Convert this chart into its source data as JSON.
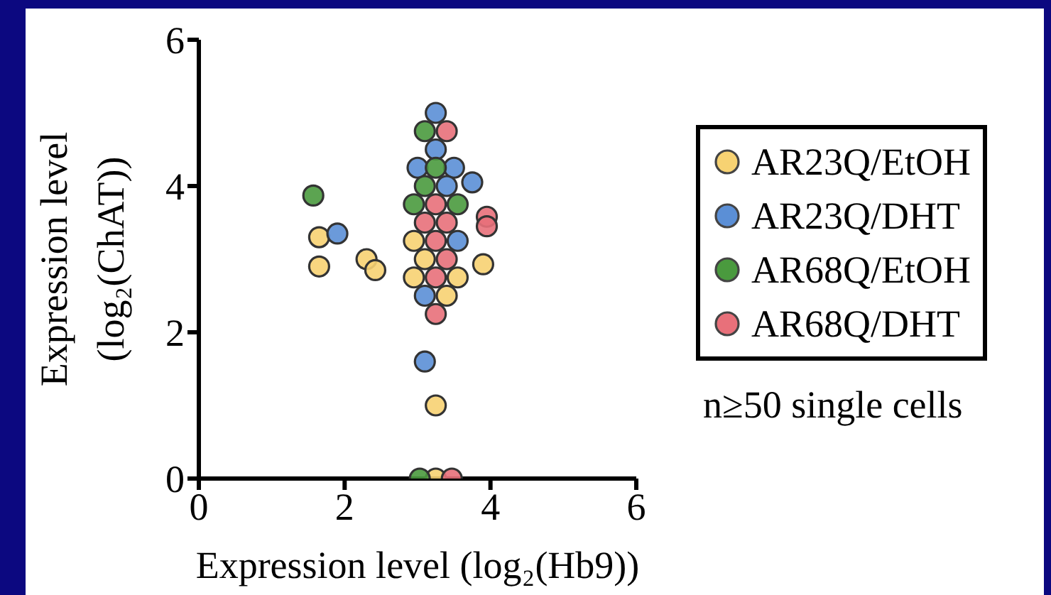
{
  "chart_data": {
    "type": "scatter",
    "xlabel": "Expression level (log₂(Hb9))",
    "ylabel": "Expression level\n(log₂(ChAT))",
    "xlim": [
      0,
      6
    ],
    "ylim": [
      0,
      6
    ],
    "xticks": [
      0,
      2,
      4,
      6
    ],
    "yticks": [
      0,
      2,
      4,
      6
    ],
    "grid": false,
    "legend": "right",
    "marker": "circle",
    "annotations": [
      "n≥50 single cells"
    ],
    "series": [
      {
        "name": "AR23Q/EtOH",
        "color": "#f7d272",
        "x": [
          1.65,
          1.65,
          2.3,
          2.42,
          3.9,
          3.25,
          2.95,
          3.1,
          2.95,
          3.55,
          3.4,
          3.25
        ],
        "values": [
          3.3,
          2.9,
          3.0,
          2.85,
          2.93,
          1.0,
          3.25,
          3.0,
          2.75,
          2.75,
          2.5,
          0
        ]
      },
      {
        "name": "AR23Q/DHT",
        "color": "#5b8fd6",
        "x": [
          1.9,
          3.1,
          3.25,
          3.25,
          3.0,
          3.5,
          3.75,
          3.4,
          3.55,
          3.1
        ],
        "values": [
          3.35,
          1.6,
          5.0,
          4.5,
          4.25,
          4.25,
          4.05,
          4.0,
          3.25,
          2.5
        ]
      },
      {
        "name": "AR68Q/EtOH",
        "color": "#4a9a3e",
        "x": [
          1.57,
          3.1,
          3.25,
          3.1,
          2.95,
          3.55,
          3.03
        ],
        "values": [
          3.87,
          4.75,
          4.25,
          4.0,
          3.75,
          3.75,
          0
        ]
      },
      {
        "name": "AR68Q/DHT",
        "color": "#e8707a",
        "x": [
          3.95,
          3.95,
          3.4,
          3.25,
          3.1,
          3.4,
          3.25,
          3.4,
          3.25,
          3.25,
          3.47
        ],
        "values": [
          3.58,
          3.45,
          4.75,
          3.75,
          3.5,
          3.5,
          3.25,
          3.0,
          2.75,
          2.25,
          0
        ]
      }
    ]
  }
}
